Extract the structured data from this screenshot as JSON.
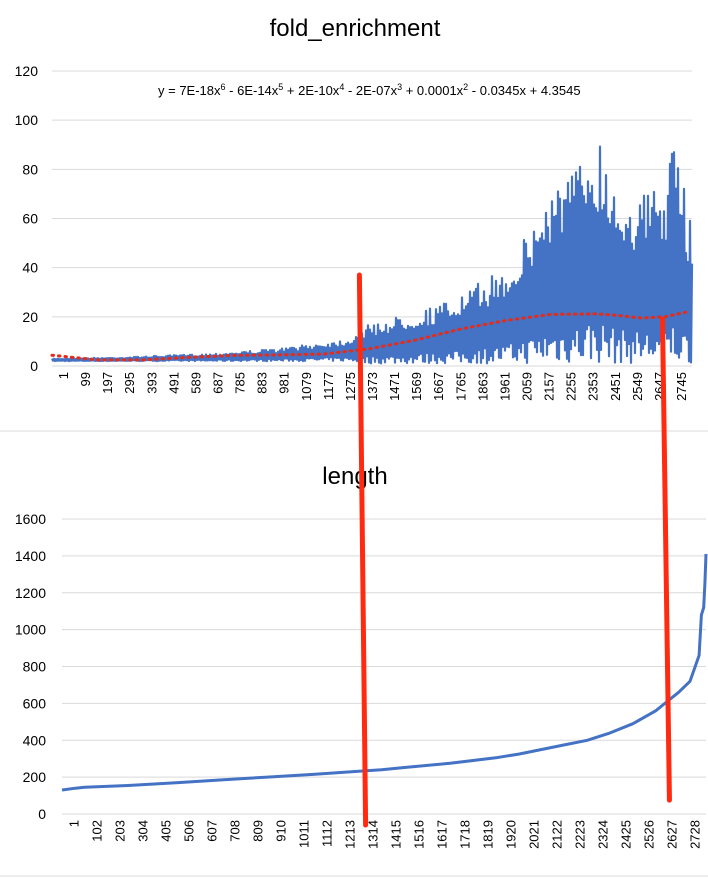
{
  "chart_data": [
    {
      "type": "line",
      "title": "fold_enrichment",
      "ylim": [
        0,
        120
      ],
      "yticks": [
        0,
        20,
        40,
        60,
        80,
        100,
        120
      ],
      "xlim": [
        1,
        2820
      ],
      "xtick_labels": [
        "1",
        "99",
        "197",
        "295",
        "393",
        "491",
        "589",
        "687",
        "785",
        "883",
        "981",
        "1079",
        "1177",
        "1275",
        "1373",
        "1471",
        "1569",
        "1667",
        "1765",
        "1863",
        "1961",
        "2059",
        "2157",
        "2255",
        "2353",
        "2451",
        "2549",
        "2647",
        "2745"
      ],
      "grid": true,
      "legend": "none",
      "series": [
        {
          "color": "#4472C4",
          "envelope_x": [
            1,
            300,
            700,
            1000,
            1300,
            1400,
            1600,
            1800,
            1900,
            2000,
            2100,
            2150,
            2200,
            2300,
            2400,
            2450,
            2500,
            2600,
            2700,
            2750,
            2800
          ],
          "envelope_top": [
            3,
            3.5,
            5,
            7,
            11,
            17,
            22,
            28,
            35,
            40,
            55,
            63,
            75,
            80,
            97,
            82,
            72,
            70,
            75,
            94,
            63
          ],
          "envelope_bottom": [
            2,
            2,
            2,
            2,
            2,
            1,
            1,
            1,
            1,
            1,
            1,
            1,
            1,
            1,
            1,
            1,
            1,
            1,
            1,
            1,
            1
          ]
        }
      ],
      "trendline": {
        "type": "polynomial",
        "order": 6,
        "color": "#E52B1A",
        "equation_parts": {
          "prefix": "y = 7E-18x",
          "p1": "6",
          "s2": " - 6E-14x",
          "p2": "5",
          "s3": " + 2E-10x",
          "p3": "4",
          "s4": " - 2E-07x",
          "p4": "3",
          "s5": " + 0.0001x",
          "p5": "2",
          "s6": " - 0.0345x + 4.3545"
        },
        "x": [
          1,
          200,
          400,
          600,
          800,
          1000,
          1200,
          1400,
          1600,
          1800,
          2000,
          2200,
          2400,
          2500,
          2600,
          2700,
          2800
        ],
        "y": [
          4.4,
          2.5,
          2.5,
          3.5,
          4.3,
          4.5,
          4.9,
          7,
          10.5,
          15,
          18.5,
          21,
          21.2,
          20.5,
          19.5,
          20,
          22
        ]
      }
    },
    {
      "type": "line",
      "title": "length",
      "ylim": [
        0,
        1600
      ],
      "yticks": [
        0,
        200,
        400,
        600,
        800,
        1000,
        1200,
        1400,
        1600
      ],
      "xlim": [
        1,
        2820
      ],
      "xtick_labels": [
        "1",
        "102",
        "203",
        "304",
        "405",
        "506",
        "607",
        "708",
        "809",
        "910",
        "1011",
        "1112",
        "1213",
        "1314",
        "1415",
        "1516",
        "1617",
        "1718",
        "1819",
        "1920",
        "2021",
        "2122",
        "2223",
        "2324",
        "2425",
        "2526",
        "2627",
        "2728"
      ],
      "grid": true,
      "legend": "none",
      "series": [
        {
          "color": "#4472C4",
          "x": [
            1,
            60,
            100,
            300,
            500,
            700,
            900,
            1100,
            1300,
            1400,
            1500,
            1700,
            1900,
            2000,
            2100,
            2200,
            2300,
            2400,
            2500,
            2600,
            2650,
            2700,
            2750,
            2770,
            2790,
            2800,
            2810,
            2815,
            2820
          ],
          "y": [
            130,
            140,
            145,
            155,
            170,
            185,
            200,
            215,
            232,
            240,
            252,
            275,
            305,
            325,
            350,
            375,
            400,
            440,
            490,
            560,
            610,
            660,
            720,
            790,
            860,
            1080,
            1120,
            1250,
            1410
          ]
        }
      ]
    }
  ],
  "annotations": {
    "color": "#FF2A10",
    "vertical_lines": [
      {
        "fold_enrichment_x": 1355,
        "length_x": 1330,
        "from_fold_enrichment_y": 37,
        "to_length_y": -60
      },
      {
        "fold_enrichment_x": 2690,
        "length_x": 2660,
        "from_fold_enrichment_y": 19,
        "to_length_y": 75
      }
    ]
  }
}
